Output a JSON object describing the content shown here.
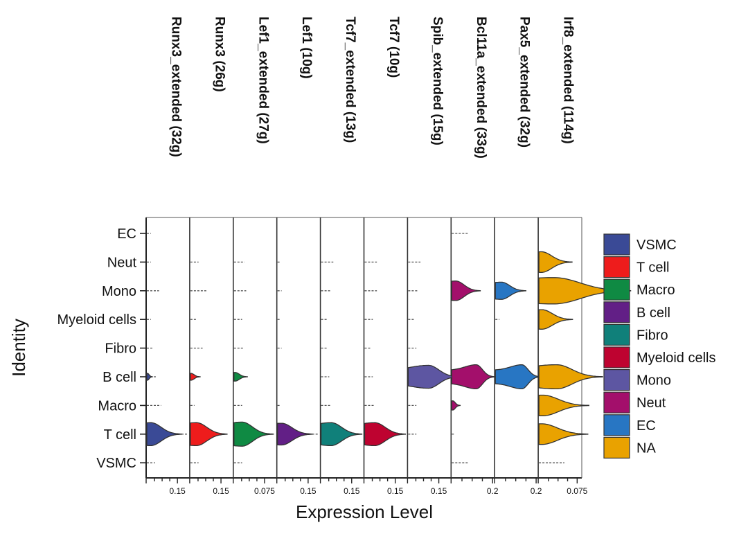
{
  "chart_data": {
    "type": "violin",
    "xlabel": "Expression Level",
    "ylabel": "Identity",
    "identities": [
      "EC",
      "Neut",
      "Mono",
      "Myeloid cells",
      "Fibro",
      "B cell",
      "Macro",
      "T cell",
      "VSMC"
    ],
    "legend": [
      {
        "label": "VSMC",
        "color": "#3a4a96"
      },
      {
        "label": "T cell",
        "color": "#ee1c1c"
      },
      {
        "label": "Macro",
        "color": "#0f8a43"
      },
      {
        "label": "B cell",
        "color": "#621f86"
      },
      {
        "label": "Fibro",
        "color": "#10807a"
      },
      {
        "label": "Myeloid cells",
        "color": "#be0330"
      },
      {
        "label": "Mono",
        "color": "#5d56a2"
      },
      {
        "label": "Neut",
        "color": "#a30f6b"
      },
      {
        "label": "EC",
        "color": "#2876c3"
      },
      {
        "label": "NA",
        "color": "#e9a200"
      }
    ],
    "panels": [
      {
        "title": "Runx3_extended (32g)",
        "tick": "0.15",
        "tick_value": 0.15,
        "xmax": 0.2,
        "violins": [
          {
            "identity": "T cell",
            "legend": "VSMC",
            "median": 0.02,
            "spread": 0.05,
            "width": 0.4
          },
          {
            "identity": "B cell",
            "legend": "VSMC",
            "median": 0.003,
            "spread": 0.008,
            "width": 0.12
          }
        ],
        "tails": {
          "EC": 0.02,
          "Neut": 0.02,
          "Mono": 0.06,
          "Myeloid cells": 0.02,
          "Fibro": 0.03,
          "B cell": 0.05,
          "Macro": 0.07,
          "T cell": 0.2,
          "VSMC": 0.04
        }
      },
      {
        "title": "Runx3 (26g)",
        "tick": "0.15",
        "tick_value": 0.15,
        "xmax": 0.2,
        "violins": [
          {
            "identity": "T cell",
            "legend": "T cell",
            "median": 0.03,
            "spread": 0.05,
            "width": 0.4
          },
          {
            "identity": "B cell",
            "legend": "T cell",
            "median": 0.003,
            "spread": 0.015,
            "width": 0.12
          }
        ],
        "tails": {
          "EC": 0.0,
          "Neut": 0.04,
          "Mono": 0.08,
          "Myeloid cells": 0.03,
          "Fibro": 0.06,
          "B cell": 0.05,
          "Macro": 0.02,
          "T cell": 0.16,
          "VSMC": 0.04
        }
      },
      {
        "title": "Lef1_extended (27g)",
        "tick": "0.075",
        "tick_value": 0.075,
        "xmax": 0.1,
        "violins": [
          {
            "identity": "T cell",
            "legend": "Macro",
            "median": 0.02,
            "spread": 0.025,
            "width": 0.42
          },
          {
            "identity": "B cell",
            "legend": "Macro",
            "median": 0.003,
            "spread": 0.01,
            "width": 0.15
          }
        ],
        "tails": {
          "EC": 0.0,
          "Neut": 0.026,
          "Mono": 0.03,
          "Myeloid cells": 0.02,
          "Fibro": 0.025,
          "B cell": 0.03,
          "Macro": 0.02,
          "T cell": 0.1,
          "VSMC": 0.02
        }
      },
      {
        "title": "Lef1 (10g)",
        "tick": "0.15",
        "tick_value": 0.15,
        "xmax": 0.2,
        "violins": [
          {
            "identity": "T cell",
            "legend": "B cell",
            "median": 0.02,
            "spread": 0.05,
            "width": 0.38
          }
        ],
        "tails": {
          "EC": 0.0,
          "Neut": 0.01,
          "Mono": 0.02,
          "Myeloid cells": 0.01,
          "Fibro": 0.02,
          "B cell": 0.0,
          "Macro": 0.01,
          "T cell": 0.2,
          "VSMC": 0.0
        }
      },
      {
        "title": "Tcf7_extended (13g)",
        "tick": "0.15",
        "tick_value": 0.15,
        "xmax": 0.2,
        "violins": [
          {
            "identity": "T cell",
            "legend": "Fibro",
            "median": 0.05,
            "spread": 0.05,
            "width": 0.4
          }
        ],
        "tails": {
          "EC": 0.0,
          "Neut": 0.06,
          "Mono": 0.05,
          "Myeloid cells": 0.03,
          "Fibro": 0.03,
          "B cell": 0.04,
          "Macro": 0.05,
          "T cell": 0.2,
          "VSMC": 0.0
        }
      },
      {
        "title": "Tcf7 (10g)",
        "tick": "0.15",
        "tick_value": 0.15,
        "xmax": 0.2,
        "violins": [
          {
            "identity": "T cell",
            "legend": "Myeloid cells",
            "median": 0.05,
            "spread": 0.05,
            "width": 0.4
          }
        ],
        "tails": {
          "EC": 0.0,
          "Neut": 0.06,
          "Mono": 0.06,
          "Myeloid cells": 0.04,
          "Fibro": 0.03,
          "B cell": 0.04,
          "Macro": 0.05,
          "T cell": 0.2,
          "VSMC": 0.0
        }
      },
      {
        "title": "Spib_extended (15g)",
        "tick": "0.15",
        "tick_value": 0.15,
        "xmax": 0.2,
        "violins": [
          {
            "identity": "B cell",
            "legend": "Mono",
            "median": 0.1,
            "spread": 0.05,
            "width": 0.4
          }
        ],
        "tails": {
          "EC": 0.0,
          "Neut": 0.06,
          "Mono": 0.05,
          "Myeloid cells": 0.03,
          "Fibro": 0.04,
          "B cell": 0.0,
          "Macro": 0.04,
          "T cell": 0.04,
          "VSMC": 0.0
        }
      },
      {
        "title": "Bcl11a_extended (33g)",
        "tick": "0.2",
        "tick_value": 0.2,
        "xmax": 0.2,
        "violins": [
          {
            "identity": "B cell",
            "legend": "Neut",
            "median": 0.12,
            "spread": 0.03,
            "width": 0.42
          },
          {
            "identity": "Mono",
            "legend": "Neut",
            "median": 0.02,
            "spread": 0.04,
            "width": 0.34
          },
          {
            "identity": "Macro",
            "legend": "Neut",
            "median": 0.005,
            "spread": 0.012,
            "width": 0.16
          }
        ],
        "tails": {
          "EC": 0.08,
          "Neut": 0.0,
          "Mono": 0.0,
          "Myeloid cells": 0.0,
          "Fibro": 0.0,
          "B cell": 0.15,
          "Macro": 0.04,
          "T cell": 0.01,
          "VSMC": 0.08
        }
      },
      {
        "title": "Pax5_extended (32g)",
        "tick": "0.2",
        "tick_value": 0.2,
        "xmax": 0.2,
        "violins": [
          {
            "identity": "B cell",
            "legend": "EC",
            "median": 0.13,
            "spread": 0.03,
            "width": 0.42
          },
          {
            "identity": "Mono",
            "legend": "EC",
            "median": 0.03,
            "spread": 0.04,
            "width": 0.3
          }
        ],
        "tails": {
          "EC": 0.0,
          "Neut": 0.0,
          "Mono": 0.0,
          "Myeloid cells": 0.02,
          "Fibro": 0.0,
          "B cell": 0.0,
          "Macro": 0.0,
          "T cell": 0.0,
          "VSMC": 0.0
        }
      },
      {
        "title": "Irf8_extended (114g)",
        "tick": "0.075",
        "tick_value": 0.075,
        "xmax": 0.08,
        "violins": [
          {
            "identity": "Neut",
            "legend": "NA",
            "median": 0.005,
            "spread": 0.02,
            "width": 0.36
          },
          {
            "identity": "Mono",
            "legend": "NA",
            "median": 0.03,
            "spread": 0.05,
            "width": 0.46
          },
          {
            "identity": "Myeloid cells",
            "legend": "NA",
            "median": 0.006,
            "spread": 0.02,
            "width": 0.34
          },
          {
            "identity": "B cell",
            "legend": "NA",
            "median": 0.035,
            "spread": 0.03,
            "width": 0.42
          },
          {
            "identity": "Macro",
            "legend": "NA",
            "median": 0.008,
            "spread": 0.03,
            "width": 0.36
          },
          {
            "identity": "T cell",
            "legend": "NA",
            "median": 0.006,
            "spread": 0.03,
            "width": 0.36
          }
        ],
        "tails": {
          "EC": 0.0,
          "Neut": 0.0,
          "Mono": 0.0,
          "Myeloid cells": 0.0,
          "Fibro": 0.0,
          "B cell": 0.0,
          "Macro": 0.0,
          "T cell": 0.0,
          "VSMC": 0.05
        }
      }
    ]
  }
}
